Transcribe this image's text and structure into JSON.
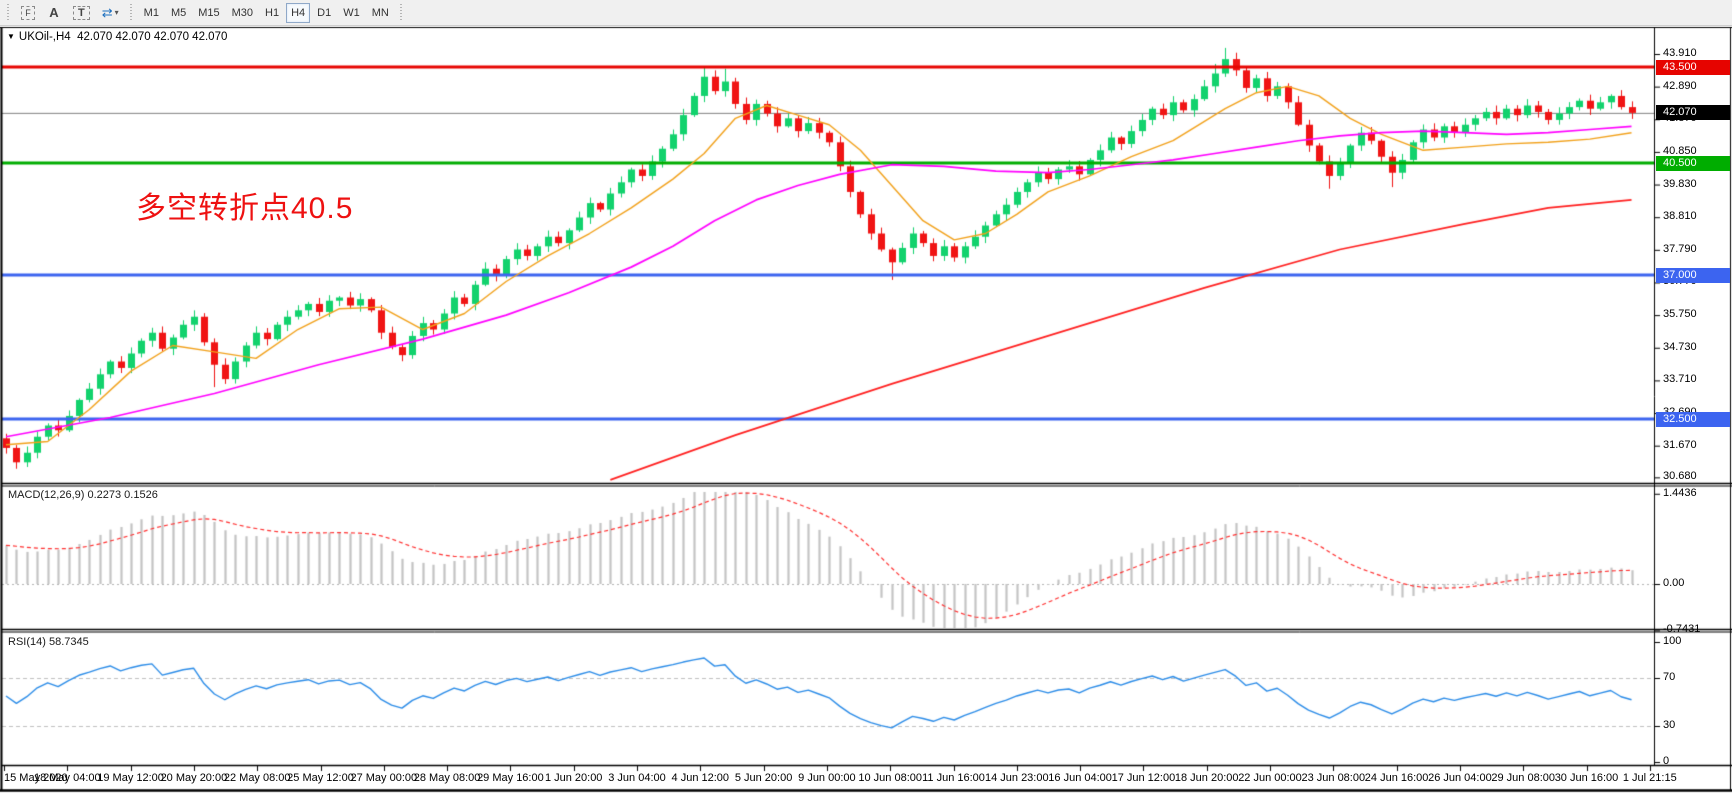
{
  "toolbar": {
    "tools": [
      {
        "id": "frame-f",
        "label": "F"
      },
      {
        "id": "text-a",
        "label": "A"
      },
      {
        "id": "text-t",
        "label": "T"
      },
      {
        "id": "arrows",
        "label": "⇄",
        "caret": "▾"
      }
    ],
    "timeframes": [
      "M1",
      "M5",
      "M15",
      "M30",
      "H1",
      "H4",
      "D1",
      "W1",
      "MN"
    ],
    "active_timeframe": "H4"
  },
  "chart_header": {
    "dropdown_icon": "▼",
    "symbol": "UKOil-,H4",
    "quotes": "42.070 42.070 42.070 42.070"
  },
  "annotation": {
    "text": "多空转折点40.5",
    "color": "#ee1111"
  },
  "macd_panel": {
    "label": "MACD(12,26,9) 0.2273 0.1526",
    "axis": [
      {
        "label": "1.4436",
        "value": 1.4436
      },
      {
        "label": "0.00",
        "value": 0
      },
      {
        "label": "-0.7431",
        "value": -0.7431
      }
    ]
  },
  "rsi_panel": {
    "label": "RSI(14) 58.7345",
    "axis": [
      {
        "label": "100",
        "value": 100
      },
      {
        "label": "70",
        "value": 70
      },
      {
        "label": "30",
        "value": 30
      },
      {
        "label": "0",
        "value": 0
      }
    ],
    "dashed_levels": [
      70,
      30
    ]
  },
  "chart_data": {
    "type": "candlestick",
    "title": "UKOil-,H4",
    "timeframe": "H4",
    "ohlc_current": [
      42.07,
      42.07,
      42.07,
      42.07
    ],
    "ylim": [
      30.53,
      44.72
    ],
    "price_ticks": [
      43.91,
      42.89,
      41.87,
      40.85,
      39.83,
      38.81,
      37.79,
      36.77,
      35.75,
      34.73,
      33.71,
      32.69,
      31.67,
      30.68
    ],
    "x_labels": [
      "15 May 2020",
      "18 May 04:00",
      "19 May 12:00",
      "20 May 20:00",
      "22 May 08:00",
      "25 May 12:00",
      "27 May 00:00",
      "28 May 08:00",
      "29 May 16:00",
      "1 Jun 20:00",
      "3 Jun 04:00",
      "4 Jun 12:00",
      "5 Jun 20:00",
      "9 Jun 00:00",
      "10 Jun 08:00",
      "11 Jun 16:00",
      "14 Jun 23:00",
      "16 Jun 04:00",
      "17 Jun 12:00",
      "18 Jun 20:00",
      "22 Jun 00:00",
      "23 Jun 08:00",
      "24 Jun 16:00",
      "26 Jun 04:00",
      "29 Jun 08:00",
      "30 Jun 16:00",
      "1 Jul 21:15"
    ],
    "open_first": 31.9,
    "closes": [
      31.6,
      31.15,
      31.45,
      31.95,
      32.3,
      32.15,
      32.6,
      33.1,
      33.45,
      33.9,
      34.3,
      34.1,
      34.55,
      34.95,
      35.2,
      34.7,
      35.05,
      35.45,
      35.7,
      34.9,
      34.2,
      33.75,
      34.3,
      34.8,
      35.2,
      35.0,
      35.45,
      35.7,
      35.9,
      36.1,
      35.85,
      36.2,
      36.3,
      36.05,
      36.25,
      35.9,
      35.2,
      34.75,
      34.5,
      35.1,
      35.5,
      35.3,
      35.8,
      36.3,
      36.1,
      36.7,
      37.2,
      37.0,
      37.5,
      37.8,
      37.6,
      37.9,
      38.2,
      38.0,
      38.4,
      38.8,
      39.25,
      39.05,
      39.55,
      39.9,
      40.3,
      40.1,
      40.55,
      40.95,
      41.4,
      42.0,
      42.6,
      43.2,
      42.75,
      43.05,
      42.35,
      41.85,
      42.35,
      42.05,
      41.65,
      41.9,
      41.5,
      41.75,
      41.45,
      41.15,
      40.4,
      39.6,
      38.9,
      38.3,
      37.8,
      37.4,
      37.85,
      38.3,
      38.0,
      37.6,
      37.9,
      37.55,
      37.9,
      38.2,
      38.55,
      38.9,
      39.2,
      39.6,
      39.9,
      40.2,
      40.0,
      40.3,
      40.4,
      40.15,
      40.6,
      40.9,
      41.3,
      41.1,
      41.5,
      41.85,
      42.2,
      42.0,
      42.4,
      42.15,
      42.5,
      42.9,
      43.3,
      43.75,
      43.4,
      42.85,
      43.15,
      42.6,
      42.9,
      42.4,
      41.7,
      41.05,
      40.55,
      40.1,
      40.5,
      41.05,
      41.45,
      41.2,
      40.7,
      40.2,
      40.6,
      41.15,
      41.55,
      41.3,
      41.65,
      41.45,
      41.7,
      41.9,
      42.1,
      41.9,
      42.2,
      42.0,
      42.3,
      42.1,
      41.85,
      42.05,
      42.25,
      42.45,
      42.2,
      42.4,
      42.6,
      42.25,
      42.07
    ],
    "wick_overrides": {
      "1": {
        "l": 30.95
      },
      "20": {
        "l": 33.5
      },
      "67": {
        "h": 43.52
      },
      "69": {
        "h": 43.45
      },
      "85": {
        "l": 36.85
      },
      "116": {
        "h": 43.6
      },
      "117": {
        "h": 44.1
      },
      "127": {
        "l": 39.7
      },
      "133": {
        "l": 39.75
      }
    },
    "up_color": "#12d26d",
    "down_color": "#f01414",
    "horizontal_levels": [
      {
        "value": 43.5,
        "label": "43.500",
        "color": "#e60400"
      },
      {
        "value": 40.5,
        "label": "40.500",
        "color": "#00ad00"
      },
      {
        "value": 37.0,
        "label": "37.000",
        "color": "#3c64f0"
      },
      {
        "value": 32.5,
        "label": "32.500",
        "color": "#3c64f0"
      }
    ],
    "current_price": {
      "value": 42.07,
      "label": "42.070",
      "line_color": "#808080",
      "tag_bg": "#000000"
    },
    "moving_averages": [
      {
        "name": "ma-fast",
        "color": "#f2a11a",
        "points": [
          [
            0,
            31.7
          ],
          [
            4,
            31.8
          ],
          [
            8,
            32.8
          ],
          [
            12,
            34.0
          ],
          [
            16,
            34.8
          ],
          [
            20,
            34.6
          ],
          [
            24,
            34.4
          ],
          [
            28,
            35.3
          ],
          [
            32,
            35.95
          ],
          [
            36,
            36.0
          ],
          [
            40,
            35.3
          ],
          [
            44,
            35.8
          ],
          [
            48,
            36.8
          ],
          [
            52,
            37.6
          ],
          [
            56,
            38.3
          ],
          [
            60,
            39.1
          ],
          [
            64,
            40.0
          ],
          [
            67,
            40.8
          ],
          [
            70,
            41.9
          ],
          [
            73,
            42.3
          ],
          [
            76,
            42.0
          ],
          [
            79,
            41.7
          ],
          [
            82,
            40.9
          ],
          [
            85,
            39.8
          ],
          [
            88,
            38.7
          ],
          [
            91,
            38.1
          ],
          [
            94,
            38.3
          ],
          [
            97,
            38.9
          ],
          [
            100,
            39.6
          ],
          [
            104,
            40.1
          ],
          [
            108,
            40.7
          ],
          [
            112,
            41.2
          ],
          [
            114,
            41.6
          ],
          [
            117,
            42.2
          ],
          [
            120,
            42.7
          ],
          [
            123,
            42.9
          ],
          [
            126,
            42.6
          ],
          [
            129,
            41.9
          ],
          [
            132,
            41.4
          ],
          [
            136,
            40.9
          ],
          [
            140,
            41.0
          ],
          [
            144,
            41.1
          ],
          [
            148,
            41.15
          ],
          [
            152,
            41.25
          ],
          [
            156,
            41.45
          ]
        ]
      },
      {
        "name": "ma-mid",
        "color": "#ff00ff",
        "points": [
          [
            0,
            31.95
          ],
          [
            10,
            32.55
          ],
          [
            20,
            33.3
          ],
          [
            30,
            34.2
          ],
          [
            40,
            35.0
          ],
          [
            48,
            35.75
          ],
          [
            54,
            36.45
          ],
          [
            60,
            37.25
          ],
          [
            64,
            37.9
          ],
          [
            68,
            38.7
          ],
          [
            72,
            39.35
          ],
          [
            76,
            39.8
          ],
          [
            80,
            40.15
          ],
          [
            85,
            40.45
          ],
          [
            90,
            40.4
          ],
          [
            95,
            40.25
          ],
          [
            100,
            40.2
          ],
          [
            104,
            40.3
          ],
          [
            108,
            40.45
          ],
          [
            112,
            40.6
          ],
          [
            116,
            40.8
          ],
          [
            120,
            41.0
          ],
          [
            124,
            41.2
          ],
          [
            128,
            41.35
          ],
          [
            132,
            41.45
          ],
          [
            136,
            41.5
          ],
          [
            140,
            41.45
          ],
          [
            144,
            41.4
          ],
          [
            148,
            41.45
          ],
          [
            152,
            41.55
          ],
          [
            156,
            41.65
          ]
        ]
      },
      {
        "name": "ma-slow",
        "color": "#ff2020",
        "points": [
          [
            58,
            30.6
          ],
          [
            70,
            32.0
          ],
          [
            85,
            33.6
          ],
          [
            100,
            35.1
          ],
          [
            115,
            36.6
          ],
          [
            128,
            37.8
          ],
          [
            140,
            38.6
          ],
          [
            148,
            39.1
          ],
          [
            156,
            39.35
          ]
        ]
      }
    ],
    "macd": {
      "fast": 12,
      "slow": 26,
      "signal": 9,
      "current_macd": 0.2273,
      "current_signal": 0.1526,
      "range": [
        -0.7431,
        1.4436
      ],
      "histogram_color": "#c4c4c4",
      "signal_color": "#ff3030"
    },
    "rsi": {
      "period": 14,
      "current": 58.7345,
      "color": "#2b8ce8",
      "range": [
        0,
        100
      ],
      "dashed_levels": [
        70,
        30
      ]
    }
  }
}
